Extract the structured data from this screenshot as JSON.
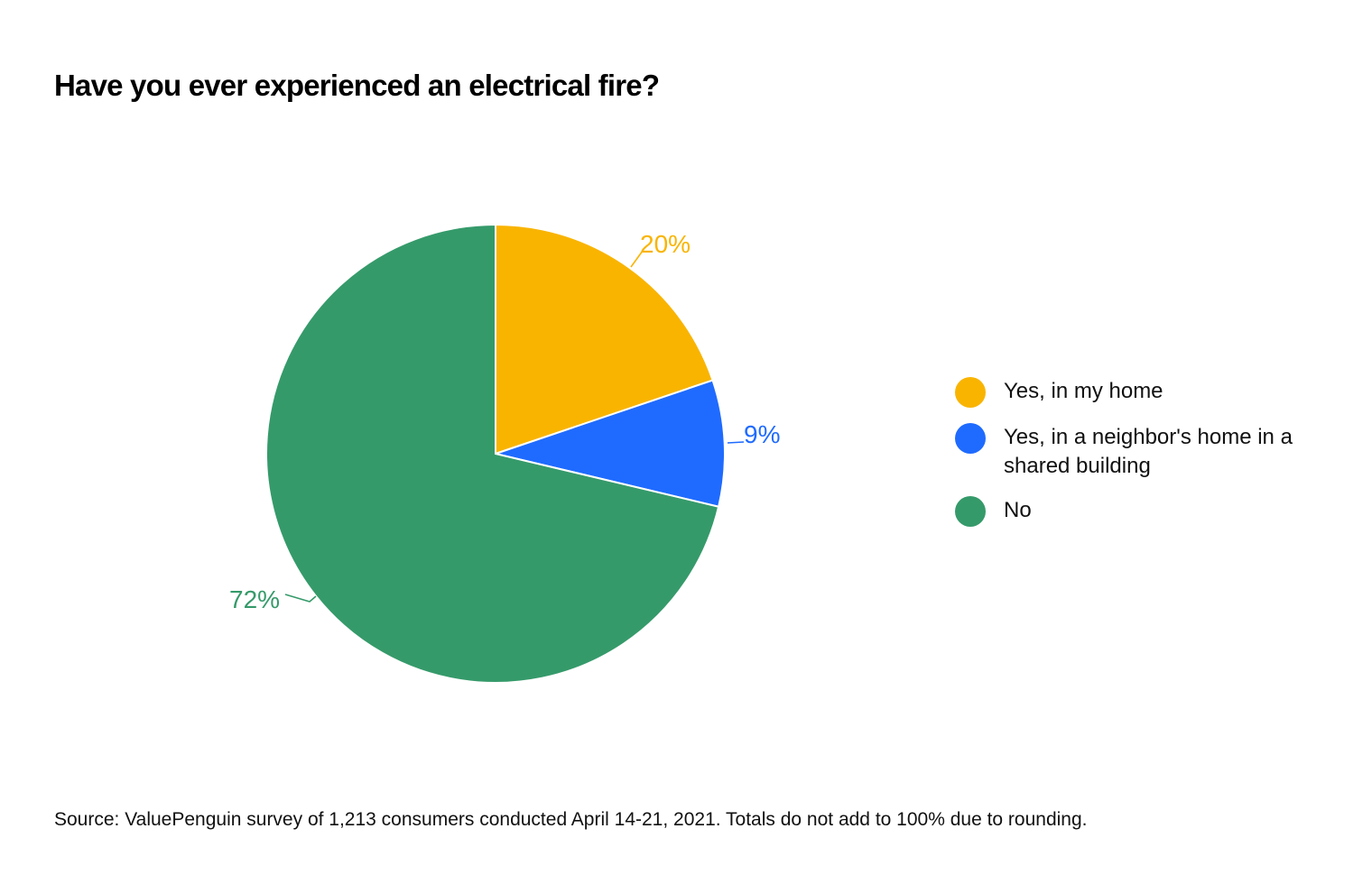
{
  "chart_data": {
    "type": "pie",
    "title": "Have you ever experienced an electrical fire?",
    "categories": [
      "Yes, in my home",
      "Yes, in a neighbor's home in a shared building",
      "No"
    ],
    "values": [
      20,
      9,
      72
    ],
    "data_labels": [
      "20%",
      "9%",
      "72%"
    ],
    "colors": [
      "#F9B400",
      "#1F6BFF",
      "#359A6A"
    ],
    "start_angle_deg": 0,
    "direction": "clockwise",
    "legend_position": "right",
    "note": "Source: ValuePenguin survey of 1,213 consumers conducted April 14-21, 2021. Totals do not add to 100% due to rounding."
  },
  "header": {
    "title": "Have you ever experienced an electrical fire?"
  },
  "legend": {
    "items": [
      {
        "label": "Yes, in my home",
        "color": "#F9B400"
      },
      {
        "label": "Yes, in a neighbor's home in a shared building",
        "color": "#1F6BFF"
      },
      {
        "label": "No",
        "color": "#359A6A"
      }
    ]
  },
  "labels": {
    "yes_home": "20%",
    "yes_neighbor": "9%",
    "no": "72%"
  },
  "footer": {
    "source": "Source: ValuePenguin survey of 1,213 consumers conducted April 14-21, 2021. Totals do not add to 100% due to rounding."
  }
}
